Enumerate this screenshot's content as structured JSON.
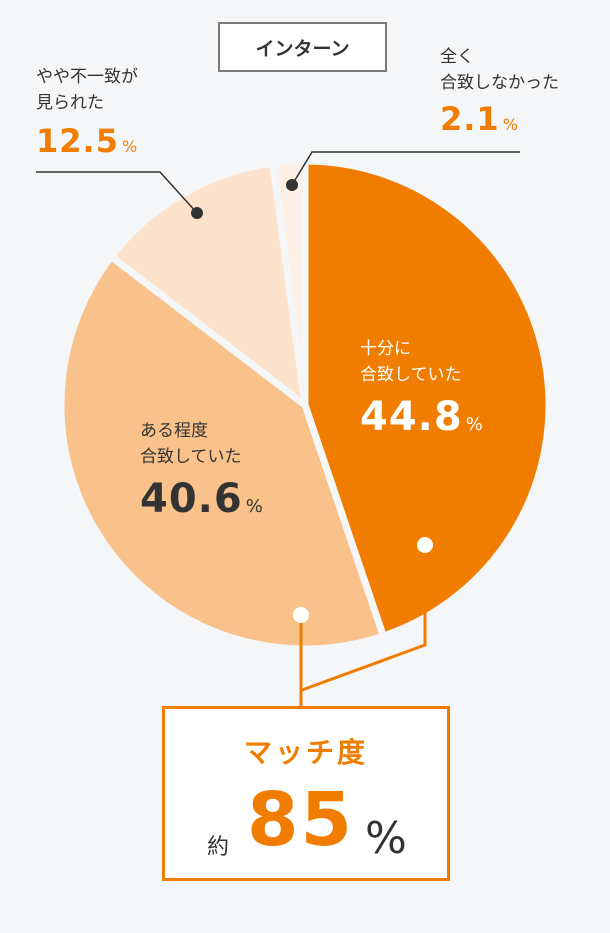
{
  "chart_data": {
    "type": "pie",
    "title": "インターン",
    "slices": [
      {
        "label": "十分に\n合致していた",
        "value": 44.8,
        "color": "#f07d00"
      },
      {
        "label": "ある程度\n合致していた",
        "value": 40.6,
        "color": "#f9c28b"
      },
      {
        "label": "やや不一致が\n見られた",
        "value": 12.5,
        "color": "#fde2cc"
      },
      {
        "label": "全く\n合致しなかった",
        "value": 2.1,
        "color": "#fdf0e6"
      }
    ],
    "value_unit": "%"
  },
  "summary": {
    "title": "マッチ度",
    "prefix": "約",
    "value": "85",
    "unit": "%"
  },
  "colors": {
    "accent": "#f07d00",
    "text": "#333333",
    "background": "#f5f6f7"
  }
}
